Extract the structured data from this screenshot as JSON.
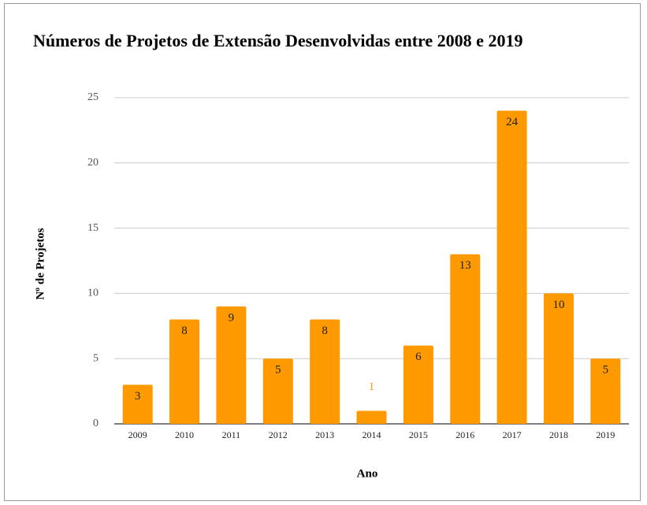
{
  "chart_data": {
    "type": "bar",
    "title": "Números de Projetos de Extensão Desenvolvidas entre 2008 e 2019",
    "x_label": "Ano",
    "y_label": "Nº de Projetos",
    "categories": [
      "2009",
      "2010",
      "2011",
      "2012",
      "2013",
      "2014",
      "2015",
      "2016",
      "2017",
      "2018",
      "2019"
    ],
    "values": [
      3,
      8,
      9,
      5,
      8,
      1,
      6,
      13,
      24,
      10,
      5
    ],
    "color": "#ff9900",
    "ylim": [
      0,
      25
    ],
    "yticks": [
      0,
      5,
      10,
      15,
      20,
      25
    ],
    "grid": true
  }
}
